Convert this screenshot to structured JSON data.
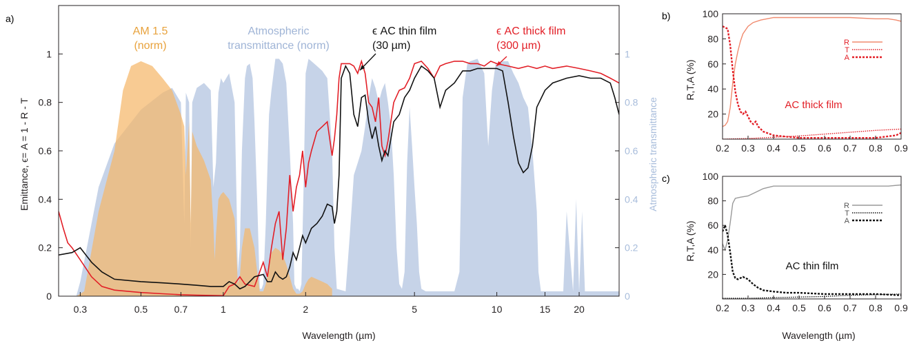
{
  "colors": {
    "am15": "#f5b76a",
    "atmos": "#a7bcdb",
    "thin": "#111111",
    "thick": "#e21e26",
    "thick_panel": "#f08a6e",
    "thin_panel": "#999999"
  },
  "chart_data": [
    {
      "panel": "a)",
      "type": "line",
      "x_scale": "log",
      "xlim": [
        0.25,
        28
      ],
      "ylim": [
        0,
        1.2
      ],
      "y2lim": [
        0,
        1.2
      ],
      "xlabel": "Wavelength (µm)",
      "ylabel": "Emittance, ϵ= A = 1 - R - T",
      "y2label": "Atmospheric transmittance",
      "x_ticks": [
        {
          "v": 0.3,
          "label": "0.3"
        },
        {
          "v": 0.5,
          "label": "0.5"
        },
        {
          "v": 0.7,
          "label": "0.7"
        },
        {
          "v": 1,
          "label": "1"
        },
        {
          "v": 2,
          "label": "2"
        },
        {
          "v": 5,
          "label": "5"
        },
        {
          "v": 10,
          "label": "10"
        },
        {
          "v": 15,
          "label": "15"
        },
        {
          "v": 20,
          "label": "20"
        }
      ],
      "y_ticks": [
        {
          "v": 0,
          "label": "0"
        },
        {
          "v": 0.2,
          "label": "0.2"
        },
        {
          "v": 0.4,
          "label": "0.4"
        },
        {
          "v": 0.6,
          "label": "0.6"
        },
        {
          "v": 0.8,
          "label": "0.8"
        },
        {
          "v": 1,
          "label": "1"
        }
      ],
      "y2_ticks": [
        {
          "v": 0,
          "label": "0"
        },
        {
          "v": 0.2,
          "label": "0.2"
        },
        {
          "v": 0.4,
          "label": "0.4"
        },
        {
          "v": 0.6,
          "label": "0.6"
        },
        {
          "v": 0.8,
          "label": "0.8"
        },
        {
          "v": 1,
          "label": "1"
        }
      ],
      "annotations": {
        "am15": [
          "AM 1.5",
          "(norm)"
        ],
        "atmos": [
          "Atmospheric",
          "transmittance (norm)"
        ],
        "thin": [
          "ϵ AC thin film",
          "(30 µm)"
        ],
        "thick": [
          "ϵ AC thick film",
          "(300 µm)"
        ]
      },
      "series": {
        "atmos": {
          "x": [
            0.29,
            0.3,
            0.35,
            0.4,
            0.5,
            0.6,
            0.65,
            0.7,
            0.72,
            0.73,
            0.75,
            0.76,
            0.77,
            0.8,
            0.85,
            0.9,
            0.92,
            0.94,
            0.96,
            0.98,
            1.0,
            1.05,
            1.1,
            1.12,
            1.13,
            1.15,
            1.17,
            1.2,
            1.22,
            1.25,
            1.28,
            1.3,
            1.33,
            1.36,
            1.38,
            1.4,
            1.43,
            1.47,
            1.5,
            1.55,
            1.6,
            1.65,
            1.7,
            1.75,
            1.8,
            1.82,
            1.85,
            1.88,
            1.9,
            1.93,
            1.97,
            2.0,
            2.05,
            2.1,
            2.2,
            2.3,
            2.4,
            2.5,
            2.55,
            2.6,
            2.8,
            2.9,
            3.0,
            3.1,
            3.2,
            3.3,
            3.4,
            3.5,
            3.6,
            3.7,
            3.8,
            3.9,
            4.0,
            4.1,
            4.2,
            4.3,
            4.4,
            4.5,
            4.6,
            4.7,
            4.8,
            4.9,
            5.0,
            5.1,
            5.2,
            5.3,
            5.5,
            5.8,
            6.0,
            6.5,
            7.0,
            7.3,
            7.5,
            7.8,
            8.0,
            8.5,
            9.0,
            9.3,
            9.6,
            9.9,
            10.5,
            11.0,
            11.5,
            12.0,
            12.5,
            13.0,
            13.5,
            14.0,
            14.2,
            14.5,
            15,
            17,
            17.5,
            18,
            19,
            19.5,
            20,
            20.5,
            21,
            28
          ],
          "y": [
            0,
            0.06,
            0.45,
            0.63,
            0.77,
            0.84,
            0.86,
            0.8,
            0.3,
            0.84,
            0.8,
            0.2,
            0.8,
            0.86,
            0.88,
            0.85,
            0.45,
            0.55,
            0.84,
            0.9,
            0.88,
            0.92,
            0.8,
            0.35,
            0.1,
            0.2,
            0.6,
            0.9,
            0.95,
            0.96,
            0.9,
            0.72,
            0.4,
            0.03,
            0.03,
            0.05,
            0.3,
            0.75,
            0.85,
            0.98,
            0.98,
            0.96,
            0.88,
            0.6,
            0.3,
            0.05,
            0.03,
            0.03,
            0.02,
            0.05,
            0.5,
            0.92,
            0.98,
            0.97,
            0.95,
            0.93,
            0.9,
            0.6,
            0.2,
            0.03,
            0.02,
            0.25,
            0.5,
            0.55,
            0.6,
            0.7,
            0.82,
            0.9,
            0.86,
            0.8,
            0.85,
            0.88,
            0.8,
            0.7,
            0.5,
            0.2,
            0.05,
            0.03,
            0.1,
            0.55,
            0.78,
            0.62,
            0.45,
            0.3,
            0.1,
            0.03,
            0.02,
            0.02,
            0.02,
            0.02,
            0.02,
            0.1,
            0.82,
            0.96,
            0.97,
            0.98,
            0.92,
            0.62,
            0.85,
            0.96,
            0.97,
            0.97,
            0.92,
            0.88,
            0.82,
            0.78,
            0.6,
            0.35,
            0.1,
            0.02,
            0.02,
            0.02,
            0.02,
            0.35,
            0.02,
            0.4,
            0.02,
            0.35,
            0.02,
            0.02
          ]
        },
        "am15": {
          "x": [
            0.29,
            0.31,
            0.35,
            0.4,
            0.43,
            0.46,
            0.5,
            0.55,
            0.6,
            0.65,
            0.7,
            0.72,
            0.73,
            0.75,
            0.76,
            0.77,
            0.8,
            0.85,
            0.9,
            0.92,
            0.93,
            0.94,
            0.96,
            0.98,
            1.0,
            1.05,
            1.1,
            1.12,
            1.13,
            1.15,
            1.17,
            1.2,
            1.25,
            1.3,
            1.33,
            1.36,
            1.4,
            1.43,
            1.47,
            1.5,
            1.55,
            1.6,
            1.65,
            1.7,
            1.75,
            1.8,
            1.85,
            1.9,
            1.95,
            2.0,
            2.05,
            2.1,
            2.2,
            2.3,
            2.4,
            2.5
          ],
          "y": [
            0,
            0.02,
            0.35,
            0.6,
            0.85,
            0.95,
            0.97,
            0.95,
            0.9,
            0.85,
            0.75,
            0.7,
            0.5,
            0.72,
            0.3,
            0.68,
            0.62,
            0.56,
            0.48,
            0.3,
            0.15,
            0.25,
            0.4,
            0.42,
            0.43,
            0.4,
            0.32,
            0.15,
            0.05,
            0.08,
            0.2,
            0.28,
            0.28,
            0.2,
            0.1,
            0.02,
            0.02,
            0.05,
            0.12,
            0.18,
            0.2,
            0.19,
            0.17,
            0.13,
            0.08,
            0.03,
            0.01,
            0.01,
            0.02,
            0.05,
            0.07,
            0.08,
            0.07,
            0.06,
            0.05,
            0.03
          ]
        },
        "thin": {
          "x": [
            0.25,
            0.28,
            0.3,
            0.33,
            0.36,
            0.4,
            0.5,
            0.6,
            0.7,
            0.8,
            0.9,
            1.0,
            1.05,
            1.1,
            1.15,
            1.2,
            1.3,
            1.4,
            1.45,
            1.5,
            1.55,
            1.6,
            1.65,
            1.7,
            1.75,
            1.8,
            1.85,
            1.9,
            1.95,
            2.0,
            2.1,
            2.2,
            2.3,
            2.4,
            2.5,
            2.55,
            2.6,
            2.65,
            2.7,
            2.8,
            2.9,
            3.0,
            3.1,
            3.2,
            3.3,
            3.4,
            3.5,
            3.6,
            3.7,
            3.8,
            3.9,
            4.0,
            4.1,
            4.2,
            4.4,
            4.6,
            4.8,
            5.0,
            5.3,
            5.6,
            5.9,
            6.2,
            6.5,
            7.0,
            7.5,
            8.0,
            8.5,
            9.0,
            9.5,
            10,
            10.5,
            11,
            11.5,
            12,
            12.5,
            13,
            13.5,
            14,
            15,
            16,
            18,
            20,
            22,
            24,
            26,
            27,
            28
          ],
          "y": [
            0.17,
            0.18,
            0.2,
            0.14,
            0.1,
            0.07,
            0.06,
            0.055,
            0.05,
            0.045,
            0.04,
            0.04,
            0.06,
            0.05,
            0.03,
            0.04,
            0.08,
            0.09,
            0.06,
            0.06,
            0.1,
            0.08,
            0.07,
            0.08,
            0.12,
            0.18,
            0.15,
            0.2,
            0.25,
            0.22,
            0.28,
            0.3,
            0.33,
            0.38,
            0.37,
            0.3,
            0.35,
            0.5,
            0.9,
            0.95,
            0.92,
            0.75,
            0.7,
            0.82,
            0.83,
            0.72,
            0.65,
            0.7,
            0.62,
            0.56,
            0.6,
            0.58,
            0.65,
            0.72,
            0.75,
            0.82,
            0.85,
            0.9,
            0.95,
            0.93,
            0.9,
            0.78,
            0.85,
            0.88,
            0.93,
            0.93,
            0.94,
            0.94,
            0.94,
            0.94,
            0.93,
            0.8,
            0.66,
            0.55,
            0.51,
            0.53,
            0.62,
            0.78,
            0.85,
            0.88,
            0.9,
            0.91,
            0.9,
            0.9,
            0.88,
            0.82,
            0.75
          ]
        },
        "thick": {
          "x": [
            0.25,
            0.26,
            0.27,
            0.28,
            0.3,
            0.33,
            0.36,
            0.4,
            0.5,
            0.6,
            0.7,
            0.8,
            0.9,
            1.0,
            1.05,
            1.1,
            1.15,
            1.2,
            1.3,
            1.4,
            1.45,
            1.5,
            1.55,
            1.6,
            1.65,
            1.7,
            1.75,
            1.8,
            1.85,
            1.9,
            1.95,
            2.0,
            2.05,
            2.1,
            2.2,
            2.3,
            2.4,
            2.5,
            2.55,
            2.6,
            2.65,
            2.7,
            2.8,
            2.9,
            3.0,
            3.1,
            3.2,
            3.3,
            3.4,
            3.5,
            3.6,
            3.7,
            3.8,
            3.9,
            4.0,
            4.2,
            4.4,
            4.6,
            4.8,
            5.0,
            5.3,
            5.6,
            5.9,
            6.2,
            6.5,
            7.0,
            7.5,
            8,
            8.5,
            9,
            9.5,
            10,
            11,
            12,
            13,
            14,
            15,
            16,
            18,
            20,
            22,
            24,
            26,
            28
          ],
          "y": [
            0.35,
            0.28,
            0.22,
            0.2,
            0.15,
            0.08,
            0.04,
            0.025,
            0.015,
            0.01,
            0.006,
            0.004,
            0.003,
            0.002,
            0.04,
            0.05,
            0.08,
            0.05,
            0.04,
            0.14,
            0.08,
            0.2,
            0.3,
            0.35,
            0.15,
            0.28,
            0.5,
            0.35,
            0.45,
            0.5,
            0.6,
            0.45,
            0.55,
            0.6,
            0.68,
            0.7,
            0.72,
            0.58,
            0.65,
            0.75,
            0.9,
            0.96,
            0.96,
            0.96,
            0.95,
            0.92,
            0.97,
            0.92,
            0.8,
            0.78,
            0.72,
            0.82,
            0.62,
            0.58,
            0.64,
            0.8,
            0.85,
            0.86,
            0.9,
            0.96,
            0.97,
            0.94,
            0.9,
            0.95,
            0.96,
            0.97,
            0.97,
            0.96,
            0.96,
            0.95,
            0.97,
            0.96,
            0.95,
            0.94,
            0.95,
            0.94,
            0.95,
            0.94,
            0.95,
            0.94,
            0.93,
            0.92,
            0.9,
            0.88
          ]
        }
      }
    },
    {
      "panel": "b)",
      "type": "line",
      "xlim": [
        0.2,
        0.9
      ],
      "ylim": [
        0,
        100
      ],
      "xlabel": "",
      "ylabel": "R,T,A (%)",
      "x_ticks": [
        "0.2",
        "0.3",
        "0.4",
        "0.5",
        "0.6",
        "0.7",
        "0.8",
        "0.9"
      ],
      "y_ticks": [
        "20",
        "40",
        "60",
        "80",
        "100"
      ],
      "legend": [
        "R",
        "T",
        "A"
      ],
      "annotation": "AC thick film",
      "series": [
        {
          "name": "R",
          "x": [
            0.2,
            0.21,
            0.22,
            0.23,
            0.24,
            0.25,
            0.26,
            0.27,
            0.28,
            0.3,
            0.32,
            0.35,
            0.4,
            0.5,
            0.6,
            0.7,
            0.8,
            0.85,
            0.88,
            0.9
          ],
          "y": [
            10,
            11,
            14,
            25,
            45,
            60,
            70,
            78,
            84,
            90,
            93,
            95,
            97,
            97,
            97,
            97,
            96,
            96,
            95,
            94
          ]
        },
        {
          "name": "T",
          "x": [
            0.2,
            0.3,
            0.4,
            0.5,
            0.6,
            0.7,
            0.8,
            0.9
          ],
          "y": [
            0,
            0.5,
            1.5,
            2.5,
            4,
            5.5,
            7,
            8
          ]
        },
        {
          "name": "A",
          "x": [
            0.2,
            0.21,
            0.22,
            0.23,
            0.24,
            0.25,
            0.26,
            0.27,
            0.28,
            0.29,
            0.3,
            0.31,
            0.32,
            0.33,
            0.34,
            0.36,
            0.4,
            0.45,
            0.5,
            0.6,
            0.7,
            0.8,
            0.88,
            0.9
          ],
          "y": [
            90,
            89,
            88,
            75,
            55,
            38,
            28,
            22,
            20,
            22,
            18,
            14,
            12,
            14,
            10,
            6,
            3,
            2,
            1,
            1,
            1,
            1,
            3,
            5
          ]
        }
      ]
    },
    {
      "panel": "c)",
      "type": "line",
      "xlim": [
        0.2,
        0.9
      ],
      "ylim": [
        0,
        100
      ],
      "xlabel": "Wavelength (µm)",
      "ylabel": "R,T,A (%)",
      "x_ticks": [
        "0.2",
        "0.3",
        "0.4",
        "0.5",
        "0.6",
        "0.7",
        "0.8",
        "0.9"
      ],
      "y_ticks": [
        "20",
        "40",
        "60",
        "80",
        "100"
      ],
      "legend": [
        "R",
        "T",
        "A"
      ],
      "annotation": "AC thin film",
      "series": [
        {
          "name": "R",
          "x": [
            0.2,
            0.21,
            0.22,
            0.23,
            0.24,
            0.25,
            0.27,
            0.3,
            0.33,
            0.36,
            0.4,
            0.5,
            0.6,
            0.7,
            0.8,
            0.85,
            0.9
          ],
          "y": [
            45,
            40,
            48,
            62,
            78,
            82,
            83,
            84,
            87,
            90,
            92,
            92,
            92,
            92,
            92,
            92,
            93
          ]
        },
        {
          "name": "T",
          "x": [
            0.2,
            0.3,
            0.4,
            0.5,
            0.6,
            0.7,
            0.8,
            0.9
          ],
          "y": [
            0.5,
            0.5,
            1,
            1.5,
            2,
            3,
            3.5,
            4
          ]
        },
        {
          "name": "A",
          "x": [
            0.2,
            0.21,
            0.22,
            0.23,
            0.24,
            0.25,
            0.26,
            0.28,
            0.3,
            0.32,
            0.34,
            0.36,
            0.4,
            0.45,
            0.5,
            0.6,
            0.7,
            0.8,
            0.9
          ],
          "y": [
            55,
            60,
            52,
            38,
            22,
            17,
            16,
            18,
            16,
            12,
            9,
            7,
            6,
            5,
            5,
            4,
            4,
            4,
            3
          ]
        }
      ]
    }
  ]
}
